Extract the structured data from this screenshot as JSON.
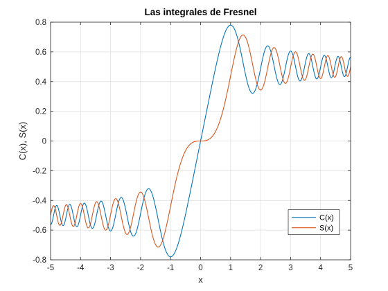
{
  "chart_data": {
    "type": "line",
    "title": "Las integrales de Fresnel",
    "xlabel": "x",
    "ylabel": "C(x), S(x)",
    "xlim": [
      -5,
      5
    ],
    "ylim": [
      -0.8,
      0.8
    ],
    "xticks": [
      -5,
      -4,
      -3,
      -2,
      -1,
      0,
      1,
      2,
      3,
      4,
      5
    ],
    "yticks": [
      -0.8,
      -0.6,
      -0.4,
      -0.2,
      0,
      0.2,
      0.4,
      0.6,
      0.8
    ],
    "xtick_labels": [
      "-5",
      "-4",
      "-3",
      "-2",
      "-1",
      "0",
      "1",
      "2",
      "3",
      "4",
      "5"
    ],
    "ytick_labels": [
      "-0.8",
      "-0.6",
      "-0.4",
      "-0.2",
      "0",
      "0.2",
      "0.4",
      "0.6",
      "0.8"
    ],
    "grid": true,
    "legend_position": "bottom-right",
    "x": [
      -5,
      -4.5,
      -4,
      -3.5,
      -3,
      -2.5,
      -2,
      -1.75,
      -1.5,
      -1.25,
      -1,
      -0.75,
      -0.5,
      -0.25,
      0,
      0.25,
      0.5,
      0.75,
      1,
      1.25,
      1.5,
      1.75,
      2,
      2.5,
      3,
      3.5,
      4,
      4.5,
      5
    ],
    "series": [
      {
        "name": "C(x)",
        "color": "#0072BD",
        "function": "fresnel_c",
        "values": [
          -0.5636,
          -0.5261,
          -0.4984,
          -0.5326,
          -0.6057,
          -0.4574,
          -0.4882,
          -0.3219,
          -0.4453,
          -0.7217,
          -0.7799,
          -0.6935,
          -0.4923,
          -0.25,
          0,
          0.25,
          0.4923,
          0.6935,
          0.7799,
          0.7217,
          0.4453,
          0.3219,
          0.4882,
          0.4574,
          0.6057,
          0.5326,
          0.4984,
          0.5261,
          0.5636
        ]
      },
      {
        "name": "S(x)",
        "color": "#D95319",
        "function": "fresnel_s",
        "values": [
          -0.4992,
          -0.4342,
          -0.4205,
          -0.4152,
          -0.4963,
          -0.6192,
          -0.3434,
          -0.4981,
          -0.6975,
          -0.6546,
          -0.4383,
          -0.2089,
          -0.0647,
          -0.0082,
          0,
          0.0082,
          0.0647,
          0.2089,
          0.4383,
          0.6546,
          0.6975,
          0.4981,
          0.3434,
          0.6192,
          0.4963,
          0.4152,
          0.4205,
          0.4342,
          0.4992
        ]
      }
    ]
  }
}
